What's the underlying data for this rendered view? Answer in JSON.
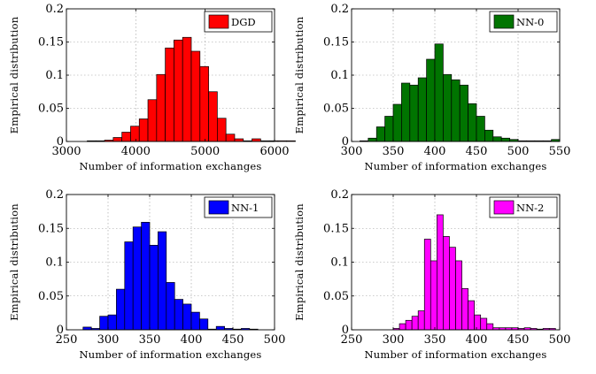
{
  "chart_data": [
    {
      "type": "bar",
      "title": "",
      "legend": "DGD",
      "color": "#ff0000",
      "xlabel": "Number of information exchanges",
      "ylabel": "Empirical distribution",
      "xlim": [
        3000,
        6000
      ],
      "ylim": [
        0,
        0.2
      ],
      "xticks": [
        3000,
        4000,
        5000,
        6000
      ],
      "yticks": [
        0,
        0.05,
        0.1,
        0.15,
        0.2
      ],
      "yticklabels": [
        "0",
        "0.05",
        "0.1",
        "0.15",
        "0.2"
      ],
      "grid": true,
      "legend_position": "top-right",
      "bin_start": 3300,
      "bin_width": 125,
      "values": [
        0.001,
        0.001,
        0.002,
        0.006,
        0.014,
        0.023,
        0.034,
        0.063,
        0.101,
        0.141,
        0.153,
        0.157,
        0.136,
        0.113,
        0.075,
        0.035,
        0.011,
        0.004,
        0.001,
        0.004,
        0.001,
        0.001,
        0.001,
        0.001
      ]
    },
    {
      "type": "bar",
      "title": "",
      "legend": "NN-0",
      "color": "#007400",
      "xlabel": "Number of information exchanges",
      "ylabel": "Empirical distribution",
      "xlim": [
        300,
        550
      ],
      "ylim": [
        0,
        0.2
      ],
      "xticks": [
        300,
        350,
        400,
        450,
        500,
        550
      ],
      "yticks": [
        0,
        0.05,
        0.1,
        0.15,
        0.2
      ],
      "yticklabels": [
        "0",
        "0.05",
        "0.1",
        "0.15",
        "0.2"
      ],
      "grid": true,
      "legend_position": "top-right",
      "bin_start": 310,
      "bin_width": 10,
      "values": [
        0.001,
        0.005,
        0.022,
        0.038,
        0.056,
        0.088,
        0.085,
        0.096,
        0.124,
        0.147,
        0.101,
        0.093,
        0.085,
        0.057,
        0.038,
        0.017,
        0.007,
        0.005,
        0.003,
        0.001,
        0.001,
        0.001,
        0.001,
        0.003
      ]
    },
    {
      "type": "bar",
      "title": "",
      "legend": "NN-1",
      "color": "#0000ff",
      "xlabel": "Number of information exchanges",
      "ylabel": "Empirical distribution",
      "xlim": [
        250,
        500
      ],
      "ylim": [
        0,
        0.2
      ],
      "xticks": [
        250,
        300,
        350,
        400,
        450,
        500
      ],
      "yticks": [
        0,
        0.05,
        0.1,
        0.15,
        0.2
      ],
      "yticklabels": [
        "0",
        "0.05",
        "0.1",
        "0.15",
        "0.2"
      ],
      "grid": true,
      "legend_position": "top-right",
      "bin_start": 270,
      "bin_width": 10,
      "values": [
        0.004,
        0.002,
        0.02,
        0.022,
        0.06,
        0.13,
        0.152,
        0.159,
        0.125,
        0.145,
        0.07,
        0.045,
        0.038,
        0.026,
        0.016,
        0.001,
        0.005,
        0.002,
        0.001,
        0.002,
        0.001
      ]
    },
    {
      "type": "bar",
      "title": "",
      "legend": "NN-2",
      "color": "#ff00ff",
      "xlabel": "Number of information exchanges",
      "ylabel": "Empirical distribution",
      "xlim": [
        250,
        500
      ],
      "ylim": [
        0,
        0.2
      ],
      "xticks": [
        250,
        300,
        350,
        400,
        450,
        500
      ],
      "yticks": [
        0,
        0.05,
        0.1,
        0.15,
        0.2
      ],
      "yticklabels": [
        "0",
        "0.05",
        "0.1",
        "0.15",
        "0.2"
      ],
      "grid": true,
      "legend_position": "top-right",
      "bin_start": 300,
      "bin_width": 7.5,
      "values": [
        0.002,
        0.009,
        0.014,
        0.02,
        0.028,
        0.134,
        0.102,
        0.17,
        0.138,
        0.122,
        0.102,
        0.061,
        0.043,
        0.022,
        0.017,
        0.009,
        0.003,
        0.003,
        0.003,
        0.003,
        0.002,
        0.003,
        0.002,
        0.001,
        0.002,
        0.002
      ]
    }
  ]
}
